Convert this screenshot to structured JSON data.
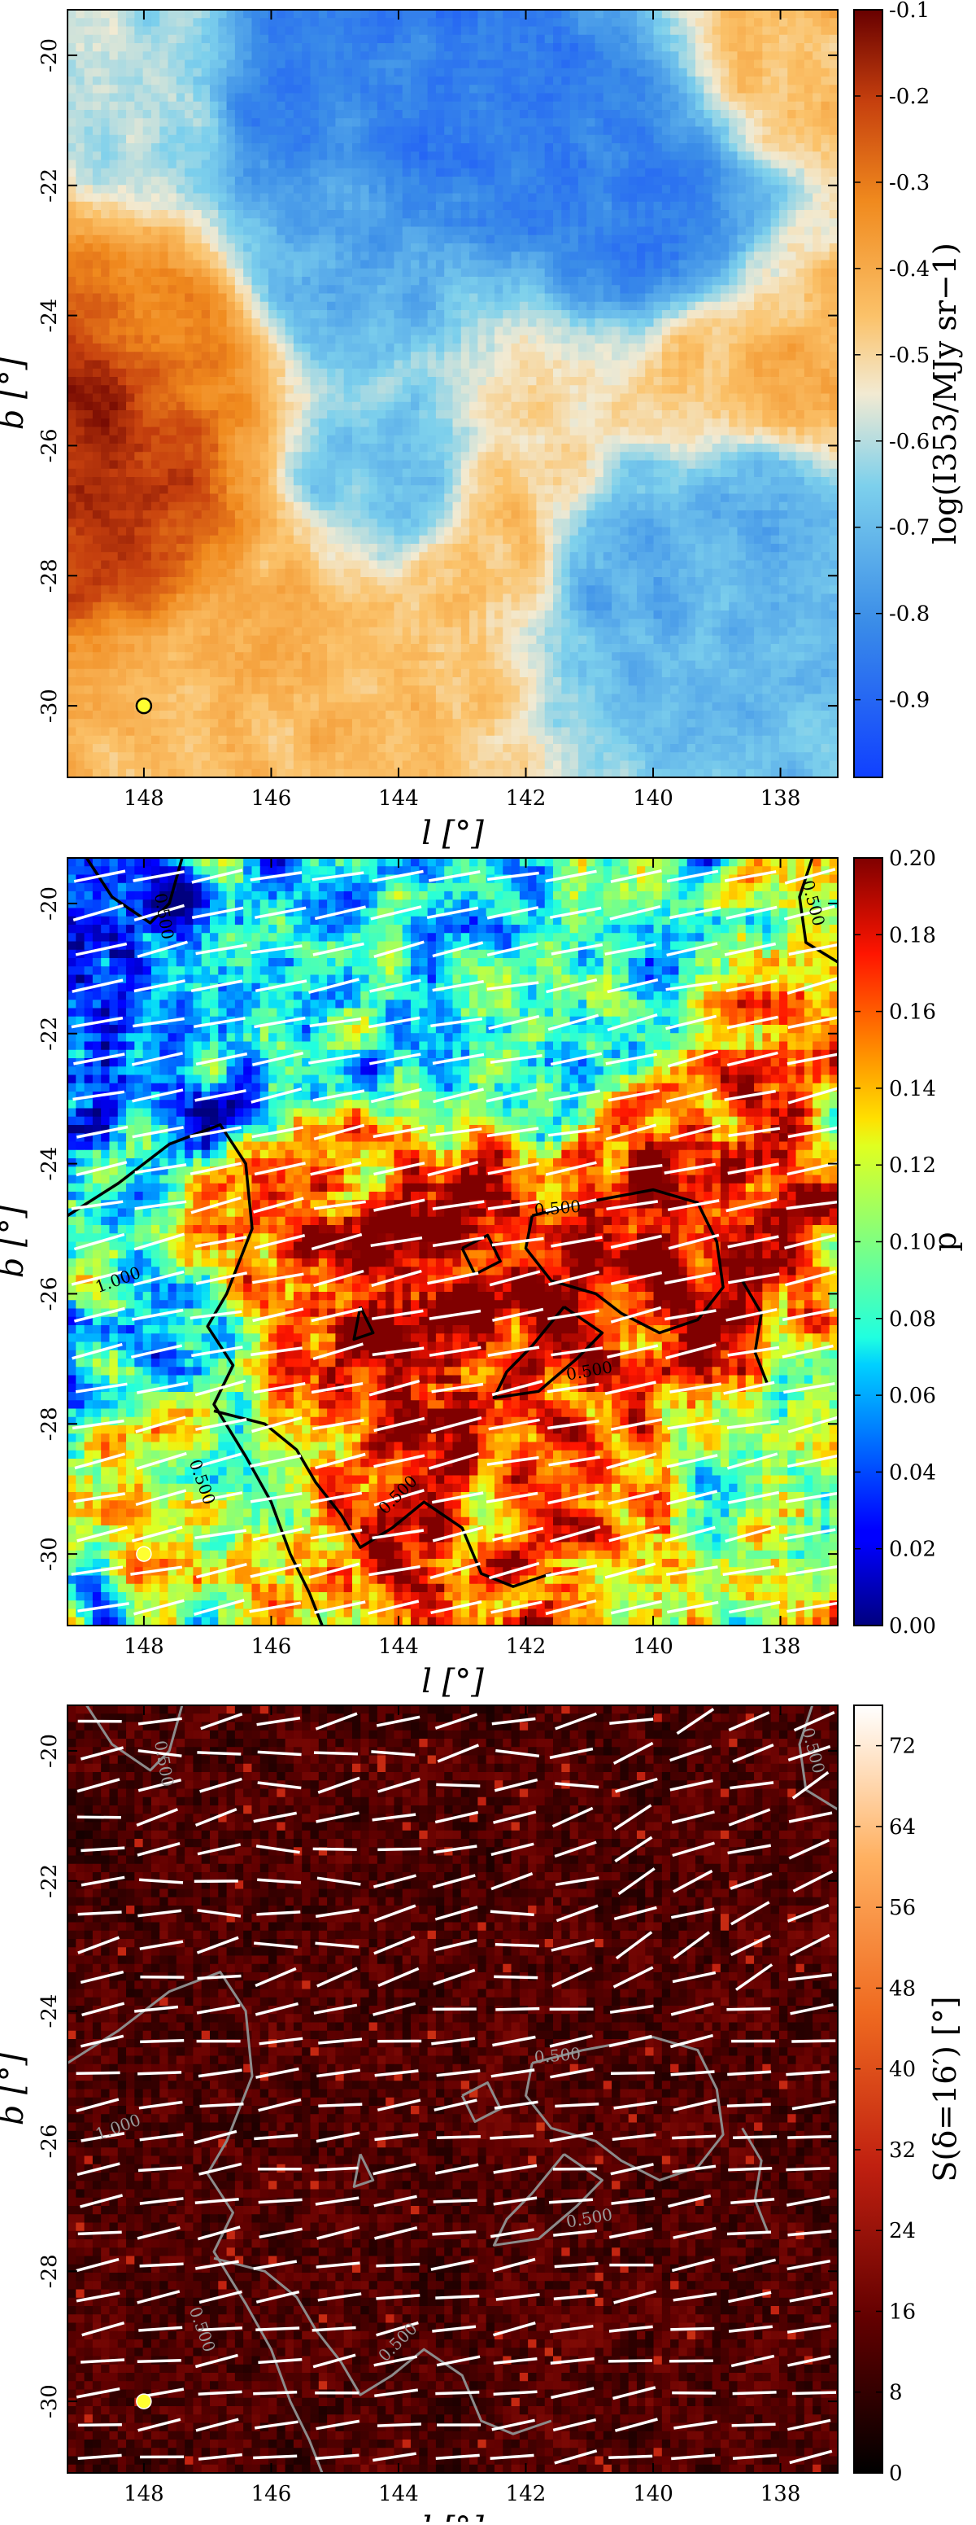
{
  "chart_data": [
    {
      "type": "heatmap",
      "quantity": "Planck 353 GHz total intensity",
      "colormap": "blue-white-orange-red",
      "xlabel": "l [°]",
      "ylabel": "b [°]",
      "colorbar_label": "log(I353/MJy sr−1)",
      "xlim": [
        149.2,
        137.1
      ],
      "ylim": [
        -31.1,
        -19.3
      ],
      "xticks": [
        "148",
        "146",
        "144",
        "142",
        "140",
        "138"
      ],
      "yticks": [
        "-20",
        "-22",
        "-24",
        "-26",
        "-28",
        "-30"
      ],
      "clim": [
        -0.99,
        -0.1
      ],
      "colorbar_ticks": [
        "-0.1",
        "-0.2",
        "-0.3",
        "-0.4",
        "-0.5",
        "-0.6",
        "-0.7",
        "-0.8",
        "-0.9"
      ],
      "marker": {
        "l": 148.0,
        "b": -30.0,
        "color": "#ffff30"
      },
      "features": [
        {
          "l": 148.8,
          "b": -25.5,
          "level": -0.15
        },
        {
          "l": 148.2,
          "b": -27.0,
          "level": -0.2
        },
        {
          "l": 147.8,
          "b": -24.5,
          "level": -0.3
        },
        {
          "l": 146.5,
          "b": -29.0,
          "level": -0.4
        },
        {
          "l": 147.0,
          "b": -30.3,
          "level": -0.45
        },
        {
          "l": 144.0,
          "b": -29.5,
          "level": -0.45
        },
        {
          "l": 142.5,
          "b": -27.5,
          "level": -0.45
        },
        {
          "l": 141.5,
          "b": -25.5,
          "level": -0.5
        },
        {
          "l": 139.0,
          "b": -24.8,
          "level": -0.45
        },
        {
          "l": 137.6,
          "b": -24.9,
          "level": -0.4
        },
        {
          "l": 137.8,
          "b": -19.8,
          "level": -0.45
        },
        {
          "l": 148.0,
          "b": -20.5,
          "level": -0.6
        },
        {
          "l": 145.5,
          "b": -20.5,
          "level": -0.85
        },
        {
          "l": 143.0,
          "b": -21.0,
          "level": -0.85
        },
        {
          "l": 141.0,
          "b": -21.5,
          "level": -0.85
        },
        {
          "l": 140.0,
          "b": -23.0,
          "level": -0.85
        },
        {
          "l": 145.0,
          "b": -23.0,
          "level": -0.75
        },
        {
          "l": 144.0,
          "b": -26.5,
          "level": -0.7
        },
        {
          "l": 140.5,
          "b": -28.0,
          "level": -0.75
        },
        {
          "l": 138.5,
          "b": -29.5,
          "level": -0.7
        },
        {
          "l": 138.5,
          "b": -27.0,
          "level": -0.75
        }
      ]
    },
    {
      "type": "heatmap",
      "quantity": "polarization fraction",
      "colormap": "jet",
      "xlabel": "l [°]",
      "ylabel": "b [°]",
      "colorbar_label": "p",
      "xlim": [
        149.2,
        137.1
      ],
      "ylim": [
        -31.1,
        -19.3
      ],
      "xticks": [
        "148",
        "146",
        "144",
        "142",
        "140",
        "138"
      ],
      "yticks": [
        "-20",
        "-22",
        "-24",
        "-26",
        "-28",
        "-30"
      ],
      "clim": [
        0.0,
        0.2
      ],
      "colorbar_ticks": [
        "0.00",
        "0.02",
        "0.04",
        "0.06",
        "0.08",
        "0.10",
        "0.12",
        "0.14",
        "0.16",
        "0.18",
        "0.20"
      ],
      "contour_labels": [
        "0.500",
        "0.500",
        "1.000",
        "0.500",
        "0.500",
        "0.500",
        "0.500"
      ],
      "contour_color": "#000000",
      "vector_color": "#ffffff",
      "vector_angle_deg": 12,
      "marker": {
        "l": 148.0,
        "b": -30.0,
        "color": "#ffff30"
      },
      "features": [
        {
          "l": 144.0,
          "b": -26.0,
          "level": 0.19
        },
        {
          "l": 140.0,
          "b": -25.6,
          "level": 0.19
        },
        {
          "l": 141.5,
          "b": -27.0,
          "level": 0.18
        },
        {
          "l": 146.0,
          "b": -25.3,
          "level": 0.17
        },
        {
          "l": 143.0,
          "b": -30.0,
          "level": 0.16
        },
        {
          "l": 139.5,
          "b": -23.8,
          "level": 0.17
        },
        {
          "l": 148.5,
          "b": -21.0,
          "level": 0.03
        },
        {
          "l": 147.5,
          "b": -22.5,
          "level": 0.06
        },
        {
          "l": 147.8,
          "b": -26.5,
          "level": 0.06
        },
        {
          "l": 145.0,
          "b": -21.0,
          "level": 0.08
        },
        {
          "l": 141.0,
          "b": -22.0,
          "level": 0.08
        },
        {
          "l": 148.0,
          "b": -29.0,
          "level": 0.1
        },
        {
          "l": 138.0,
          "b": -29.0,
          "level": 0.1
        }
      ]
    },
    {
      "type": "heatmap",
      "quantity": "polarization angle dispersion function",
      "colormap": "hot",
      "xlabel": "l [°]",
      "ylabel": "b [°]",
      "colorbar_label": "S(δ=16′) [°]",
      "xlim": [
        149.2,
        137.1
      ],
      "ylim": [
        -31.1,
        -19.3
      ],
      "xticks": [
        "148",
        "146",
        "144",
        "142",
        "140",
        "138"
      ],
      "yticks": [
        "-20",
        "-22",
        "-24",
        "-26",
        "-28",
        "-30"
      ],
      "clim": [
        0,
        76
      ],
      "colorbar_ticks": [
        "0",
        "8",
        "16",
        "24",
        "32",
        "40",
        "48",
        "56",
        "64",
        "72"
      ],
      "contour_labels": [
        "0.500",
        "0.500",
        "1.000",
        "0.500",
        "0.500",
        "0.500",
        "0.500"
      ],
      "contour_color": "#8c8c8c",
      "vector_color": "#ffffff",
      "marker": {
        "l": 148.0,
        "b": -30.0,
        "color": "#ffff30"
      },
      "typical_level": 12
    }
  ]
}
